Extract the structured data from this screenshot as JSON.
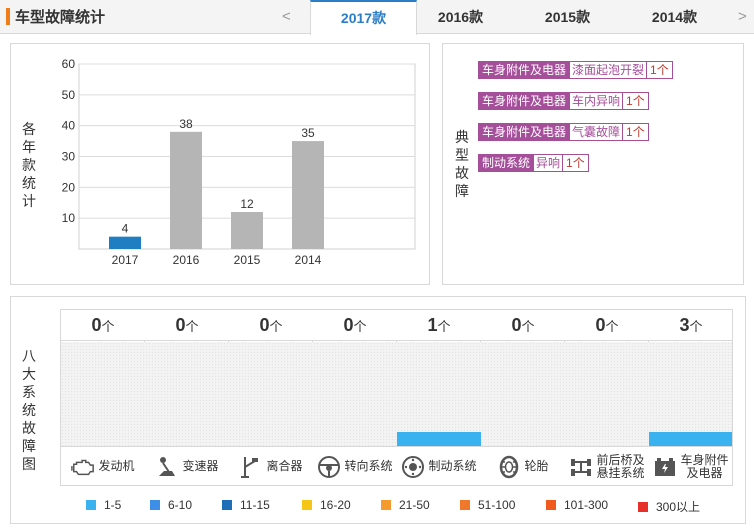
{
  "header": {
    "title": "车型故障统计",
    "prev_arrow": "<",
    "next_arrow": ">",
    "tabs": [
      "2017款",
      "2016款",
      "2015款",
      "2014款"
    ],
    "active_tab": "2017款"
  },
  "chart_panel": {
    "ylabel": "各年款统计"
  },
  "chart_data": {
    "type": "bar",
    "title": "",
    "xlabel": "",
    "ylabel": "各年款统计",
    "ylim": [
      0,
      60
    ],
    "yticks": [
      "10",
      "20",
      "30",
      "40",
      "50",
      "60"
    ],
    "categories": [
      "2017",
      "2016",
      "2015",
      "2014"
    ],
    "values": [
      4,
      38,
      12,
      35
    ],
    "value_labels": [
      "4",
      "38",
      "12",
      "35"
    ],
    "colors": [
      "#1f7ec1",
      "#b5b5b5",
      "#b5b5b5",
      "#b5b5b5"
    ],
    "grid": true
  },
  "typical_faults": {
    "label": "典型故障",
    "items": [
      {
        "category": "车身附件及电器",
        "detail": "漆面起泡开裂",
        "count": "1个"
      },
      {
        "category": "车身附件及电器",
        "detail": "车内异响",
        "count": "1个"
      },
      {
        "category": "车身附件及电器",
        "detail": "气囊故障",
        "count": "1个"
      },
      {
        "category": "制动系统",
        "detail": "异响",
        "count": "1个"
      }
    ]
  },
  "systems_panel": {
    "label": "八大系统故障图",
    "unit": "个",
    "systems": [
      {
        "name": "发动机",
        "count": "0",
        "fill": 0,
        "icon": "engine-icon"
      },
      {
        "name": "变速器",
        "count": "0",
        "fill": 0,
        "icon": "gear-shifter-icon"
      },
      {
        "name": "离合器",
        "count": "0",
        "fill": 0,
        "icon": "clutch-pedal-icon"
      },
      {
        "name": "转向系统",
        "count": "0",
        "fill": 0,
        "icon": "steering-wheel-icon"
      },
      {
        "name": "制动系统",
        "count": "1",
        "fill": 0.13,
        "icon": "brake-disc-icon"
      },
      {
        "name": "轮胎",
        "count": "0",
        "fill": 0,
        "icon": "tire-icon"
      },
      {
        "name": "前后桥及\n悬挂系统",
        "name_line1": "前后桥及",
        "name_line2": "悬挂系统",
        "count": "0",
        "fill": 0,
        "icon": "axle-icon"
      },
      {
        "name": "车身附件\n及电器",
        "name_line1": "车身附件",
        "name_line2": "及电器",
        "count": "3",
        "fill": 0.13,
        "icon": "car-battery-icon"
      }
    ]
  },
  "legend": [
    {
      "label": "1-5",
      "color": "#3ab2f0"
    },
    {
      "label": "6-10",
      "color": "#3d8ee6"
    },
    {
      "label": "11-15",
      "color": "#1f6fb8"
    },
    {
      "label": "16-20",
      "color": "#f5c518"
    },
    {
      "label": "21-50",
      "color": "#f59a2c"
    },
    {
      "label": "51-100",
      "color": "#f0782a"
    },
    {
      "label": "101-300",
      "color": "#f05a1e"
    },
    {
      "label": "300以上",
      "color": "#e8302a"
    }
  ]
}
